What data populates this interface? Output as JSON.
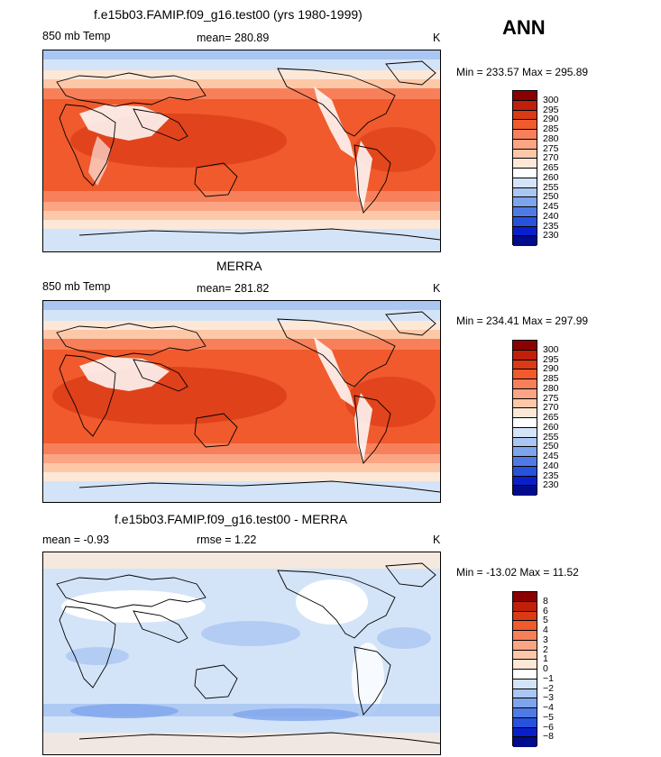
{
  "header": {
    "season": "ANN"
  },
  "chart_data": [
    {
      "type": "heatmap",
      "title": "f.e15b03.FAMIP.f09_g16.test00 (yrs 1980-1999)",
      "left_label": "850 mb Temp",
      "stat_label": "mean= 280.89",
      "units": "K",
      "min_max": "Min = 233.57 Max = 295.89",
      "min": 233.57,
      "max": 295.89,
      "mean": 280.89,
      "colorbar": {
        "ticks": [
          "300",
          "295",
          "290",
          "285",
          "280",
          "275",
          "270",
          "265",
          "260",
          "255",
          "250",
          "245",
          "240",
          "235",
          "230"
        ],
        "colors": [
          "#8b0000",
          "#c0200a",
          "#da3a16",
          "#f05a2c",
          "#f7805a",
          "#fba584",
          "#fdc8a8",
          "#fde8d8",
          "#ffffff",
          "#d4e4f8",
          "#aac6f2",
          "#7ea4ec",
          "#4f7ae6",
          "#2652dc",
          "#0a1fcc",
          "#000c8c"
        ]
      }
    },
    {
      "type": "heatmap",
      "title": "MERRA",
      "left_label": "850 mb Temp",
      "stat_label": "mean= 281.82",
      "units": "K",
      "min_max": "Min = 234.41 Max = 297.99",
      "min": 234.41,
      "max": 297.99,
      "mean": 281.82,
      "colorbar": {
        "ticks": [
          "300",
          "295",
          "290",
          "285",
          "280",
          "275",
          "270",
          "265",
          "260",
          "255",
          "250",
          "245",
          "240",
          "235",
          "230"
        ],
        "colors": [
          "#8b0000",
          "#c0200a",
          "#da3a16",
          "#f05a2c",
          "#f7805a",
          "#fba584",
          "#fdc8a8",
          "#fde8d8",
          "#ffffff",
          "#d4e4f8",
          "#aac6f2",
          "#7ea4ec",
          "#4f7ae6",
          "#2652dc",
          "#0a1fcc",
          "#000c8c"
        ]
      }
    },
    {
      "type": "heatmap",
      "title": "f.e15b03.FAMIP.f09_g16.test00 - MERRA",
      "left_label": "mean =   -0.93",
      "stat_label": "rmse =    1.22",
      "units": "K",
      "min_max": "Min = -13.02 Max =  11.52",
      "min": -13.02,
      "max": 11.52,
      "mean": -0.93,
      "rmse": 1.22,
      "colorbar": {
        "ticks": [
          "8",
          "6",
          "5",
          "4",
          "3",
          "2",
          "1",
          "0",
          "-1",
          "-2",
          "-3",
          "-4",
          "-5",
          "-6",
          "-8"
        ],
        "colors": [
          "#8b0000",
          "#c0200a",
          "#da3a16",
          "#f05a2c",
          "#f7805a",
          "#fba584",
          "#fdc8a8",
          "#fde8d8",
          "#ffffff",
          "#d4e4f8",
          "#aac6f2",
          "#7ea4ec",
          "#4f7ae6",
          "#2652dc",
          "#0a1fcc",
          "#000c8c"
        ]
      }
    }
  ]
}
